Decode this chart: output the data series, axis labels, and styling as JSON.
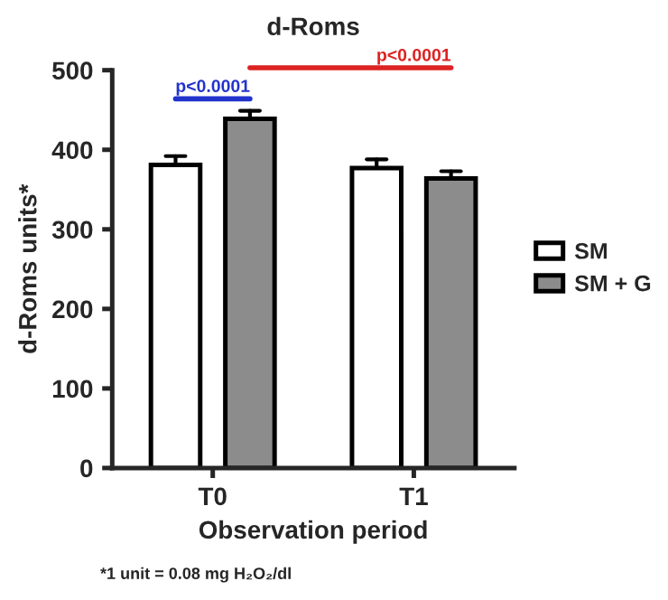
{
  "chart_data": {
    "type": "bar",
    "title": "d-Roms",
    "xlabel": "Observation period",
    "ylabel": "d-Roms units*",
    "categories": [
      "T0",
      "T1"
    ],
    "series": [
      {
        "name": "SM",
        "color": "#ffffff",
        "values": [
          381,
          377
        ],
        "errors": [
          [
            381,
            392
          ],
          [
            377,
            388
          ]
        ]
      },
      {
        "name": "SM + G",
        "color": "#8c8c8c",
        "values": [
          439,
          364
        ],
        "errors": [
          [
            439,
            449
          ],
          [
            364,
            373
          ]
        ]
      }
    ],
    "ylim": [
      0,
      500
    ],
    "yticks": [
      0,
      100,
      200,
      300,
      400,
      500
    ],
    "grid": false,
    "legend": "right",
    "annotations": [
      "p<0.0001",
      "p<0.0001",
      "*1 unit = 0.08 mg H₂O₂/dl"
    ]
  }
}
